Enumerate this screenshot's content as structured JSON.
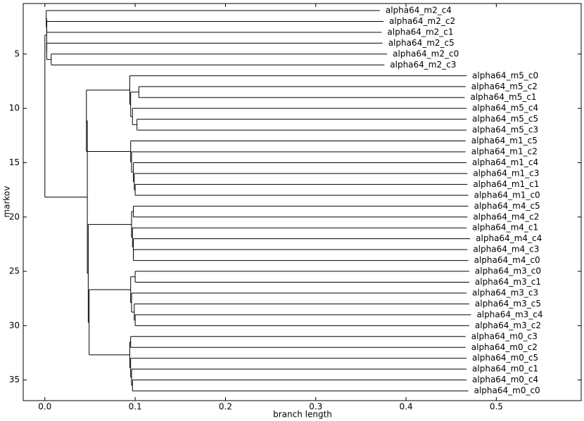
{
  "chart_data": {
    "type": "dendrogram",
    "xlabel": "branch length",
    "ylabel": "markov",
    "xlim": [
      -0.024,
      0.594
    ],
    "ylim": [
      0.35,
      36.9
    ],
    "y_inverted": true,
    "xticks": [
      {
        "value": 0,
        "label": "0.0"
      },
      0.1,
      0.2,
      0.3,
      0.4,
      0.5
    ],
    "yticks": [
      5,
      10,
      15,
      20,
      25,
      30,
      35
    ],
    "color": "#000000",
    "tree": {
      "x": 0,
      "children": [
        {
          "x": 0.002,
          "children": [
            {
              "x": 0.0015,
              "children": [
                {
                  "name": "alpha64_m2_c4",
                  "x": 0.371
                },
                {
                  "x": 0.002,
                  "children": [
                    {
                      "name": "alpha64_m2_c2",
                      "x": 0.375
                    },
                    {
                      "name": "alpha64_m2_c1",
                      "x": 0.373
                    }
                  ]
                }
              ]
            },
            {
              "x": 0.002,
              "children": [
                {
                  "name": "alpha64_m2_c5",
                  "x": 0.374
                },
                {
                  "x": 0.007,
                  "children": [
                    {
                      "name": "alpha64_m2_c0",
                      "x": 0.379
                    },
                    {
                      "name": "alpha64_m2_c3",
                      "x": 0.376
                    }
                  ]
                }
              ]
            }
          ]
        },
        {
          "x": 0.047,
          "children": [
            {
              "x": 0.046,
              "children": [
                {
                  "x": 0.094,
                  "children": [
                    {
                      "name": "alpha64_m5_c0",
                      "x": 0.467
                    },
                    {
                      "x": 0.095,
                      "children": [
                        {
                          "x": 0.104,
                          "children": [
                            {
                              "name": "alpha64_m5_c2",
                              "x": 0.466
                            },
                            {
                              "name": "alpha64_m5_c1",
                              "x": 0.465
                            }
                          ]
                        },
                        {
                          "x": 0.097,
                          "children": [
                            {
                              "name": "alpha64_m5_c4",
                              "x": 0.467
                            },
                            {
                              "x": 0.102,
                              "children": [
                                {
                                  "name": "alpha64_m5_c5",
                                  "x": 0.467
                                },
                                {
                                  "name": "alpha64_m5_c3",
                                  "x": 0.467
                                }
                              ]
                            }
                          ]
                        }
                      ]
                    }
                  ]
                },
                {
                  "x": 0.095,
                  "children": [
                    {
                      "name": "alpha64_m1_c5",
                      "x": 0.466
                    },
                    {
                      "x": 0.096,
                      "children": [
                        {
                          "name": "alpha64_m1_c2",
                          "x": 0.466
                        },
                        {
                          "x": 0.098,
                          "children": [
                            {
                              "name": "alpha64_m1_c4",
                              "x": 0.467
                            },
                            {
                              "x": 0.099,
                              "children": [
                                {
                                  "name": "alpha64_m1_c3",
                                  "x": 0.468
                                },
                                {
                                  "x": 0.1,
                                  "children": [
                                    {
                                      "name": "alpha64_m1_c1",
                                      "x": 0.468
                                    },
                                    {
                                      "name": "alpha64_m1_c0",
                                      "x": 0.469
                                    }
                                  ]
                                }
                              ]
                            }
                          ]
                        }
                      ]
                    }
                  ]
                }
              ]
            },
            {
              "x": 0.048,
              "children": [
                {
                  "x": 0.096,
                  "children": [
                    {
                      "x": 0.098,
                      "children": [
                        {
                          "name": "alpha64_m4_c5",
                          "x": 0.469
                        },
                        {
                          "name": "alpha64_m4_c2",
                          "x": 0.468
                        }
                      ]
                    },
                    {
                      "x": 0.097,
                      "children": [
                        {
                          "name": "alpha64_m4_c1",
                          "x": 0.467
                        },
                        {
                          "x": 0.098,
                          "children": [
                            {
                              "name": "alpha64_m4_c4",
                              "x": 0.471
                            },
                            {
                              "x": 0.098,
                              "children": [
                                {
                                  "name": "alpha64_m4_c3",
                                  "x": 0.468
                                },
                                {
                                  "name": "alpha64_m4_c0",
                                  "x": 0.469
                                }
                              ]
                            }
                          ]
                        }
                      ]
                    }
                  ]
                },
                {
                  "x": 0.049,
                  "children": [
                    {
                      "x": 0.095,
                      "children": [
                        {
                          "x": 0.1,
                          "children": [
                            {
                              "name": "alpha64_m3_c0",
                              "x": 0.47
                            },
                            {
                              "name": "alpha64_m3_c1",
                              "x": 0.47
                            }
                          ]
                        },
                        {
                          "x": 0.096,
                          "children": [
                            {
                              "name": "alpha64_m3_c3",
                              "x": 0.467
                            },
                            {
                              "x": 0.099,
                              "children": [
                                {
                                  "name": "alpha64_m3_c5",
                                  "x": 0.47
                                },
                                {
                                  "x": 0.1,
                                  "children": [
                                    {
                                      "name": "alpha64_m3_c4",
                                      "x": 0.472
                                    },
                                    {
                                      "name": "alpha64_m3_c2",
                                      "x": 0.47
                                    }
                                  ]
                                }
                              ]
                            }
                          ]
                        }
                      ]
                    },
                    {
                      "x": 0.094,
                      "children": [
                        {
                          "x": 0.095,
                          "children": [
                            {
                              "name": "alpha64_m0_c3",
                              "x": 0.466
                            },
                            {
                              "name": "alpha64_m0_c2",
                              "x": 0.466
                            }
                          ]
                        },
                        {
                          "x": 0.095,
                          "children": [
                            {
                              "name": "alpha64_m0_c5",
                              "x": 0.467
                            },
                            {
                              "x": 0.096,
                              "children": [
                                {
                                  "name": "alpha64_m0_c1",
                                  "x": 0.467
                                },
                                {
                                  "x": 0.097,
                                  "children": [
                                    {
                                      "name": "alpha64_m0_c4",
                                      "x": 0.467
                                    },
                                    {
                                      "name": "alpha64_m0_c0",
                                      "x": 0.469
                                    }
                                  ]
                                }
                              ]
                            }
                          ]
                        }
                      ]
                    }
                  ]
                }
              ]
            }
          ]
        }
      ]
    }
  }
}
